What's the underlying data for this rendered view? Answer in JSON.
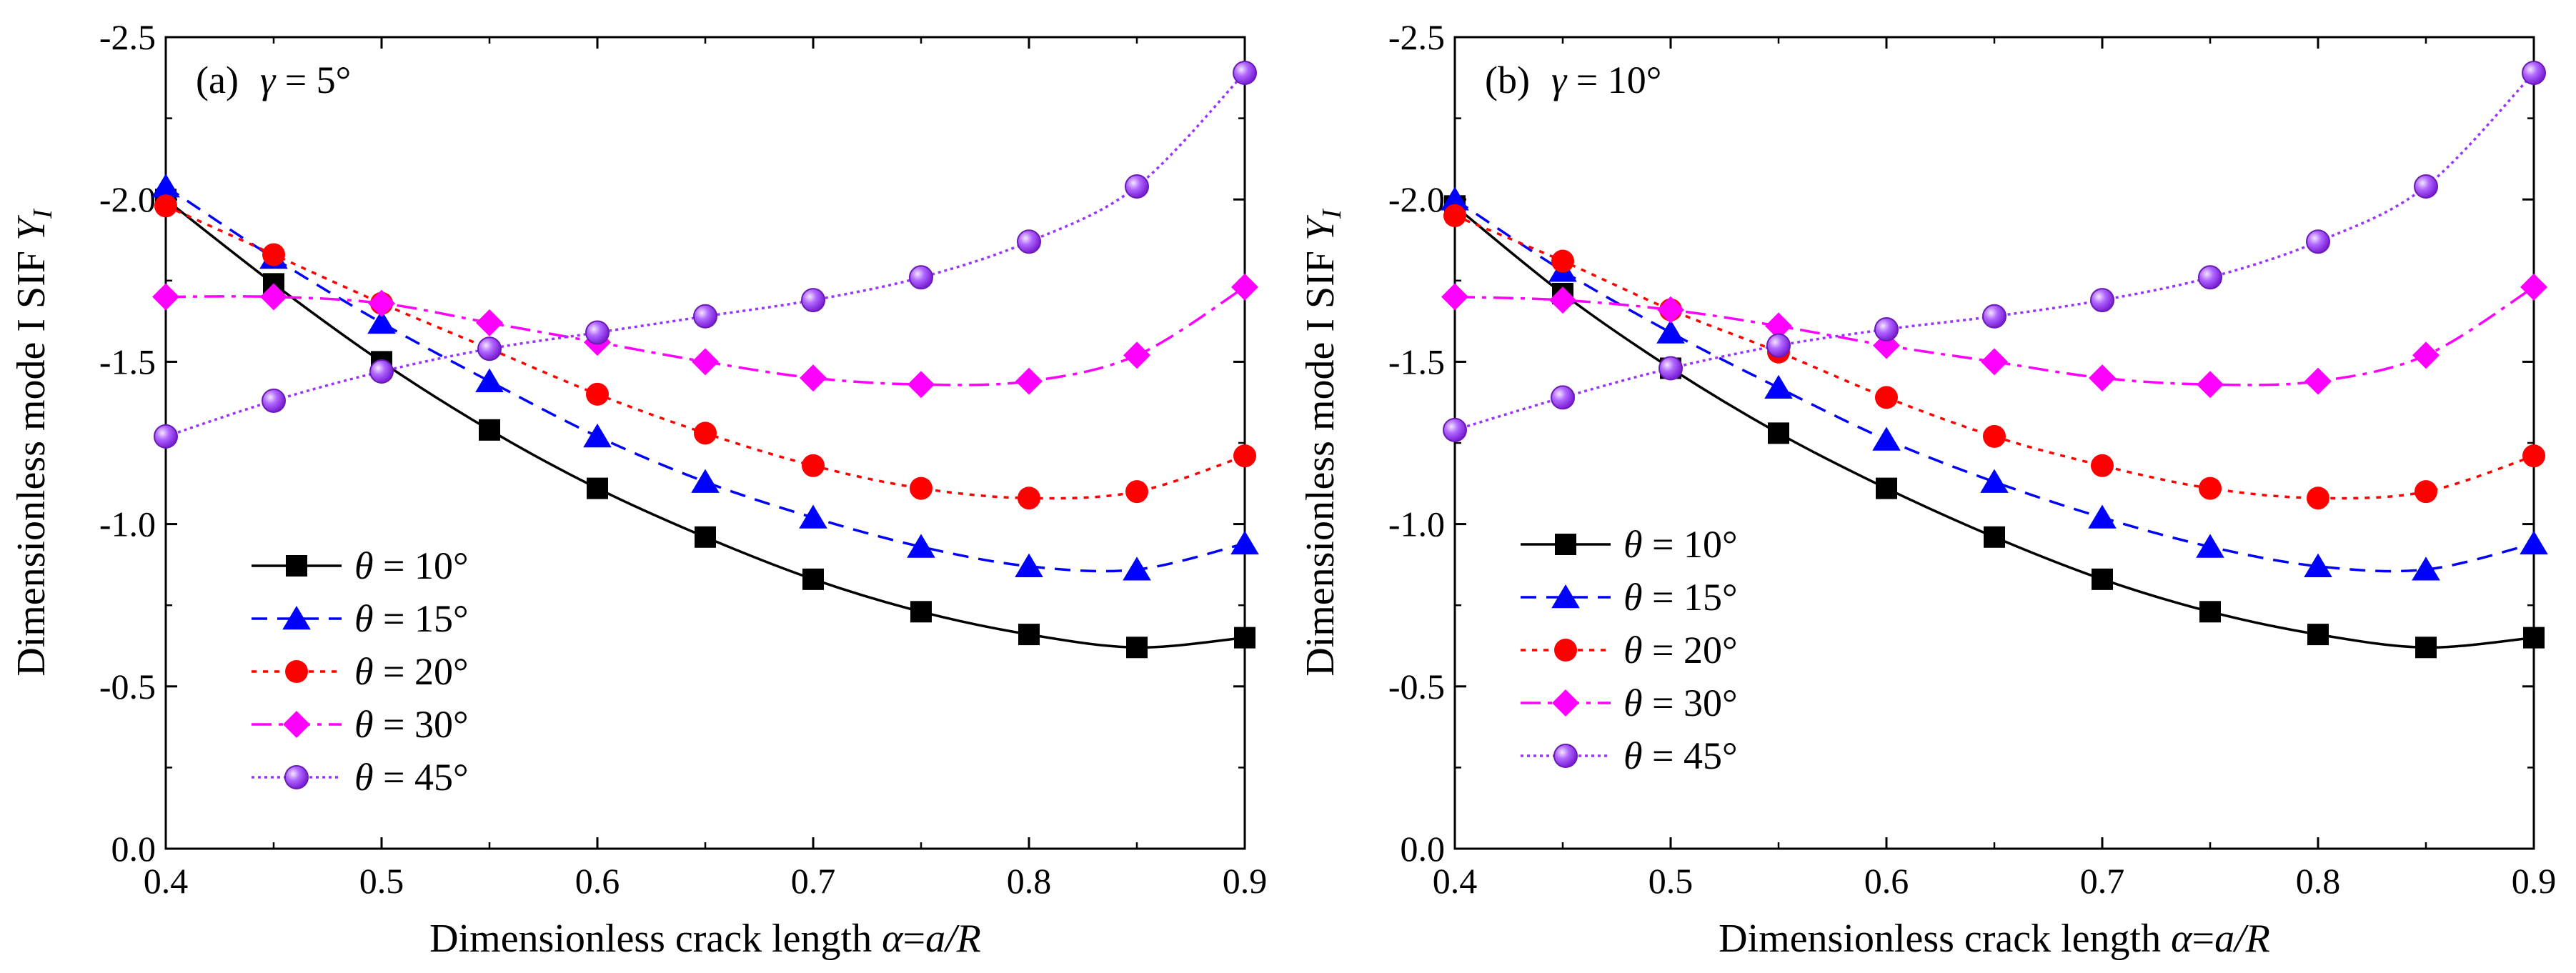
{
  "figure": {
    "styles": [
      {
        "key": "t10",
        "color": "#000000",
        "dash": "",
        "marker": "square"
      },
      {
        "key": "t15",
        "color": "#0000ff",
        "dash": "22,14",
        "marker": "triangle"
      },
      {
        "key": "t20",
        "color": "#ff0000",
        "dash": "7,9",
        "marker": "circle"
      },
      {
        "key": "t30",
        "color": "#ff00ff",
        "dash": "28,10,6,10",
        "marker": "diamond"
      },
      {
        "key": "t45",
        "color": "#9933ff",
        "dash": "4,5",
        "marker": "sphere"
      }
    ]
  },
  "chart_data": [
    {
      "type": "line",
      "panel_label": "(a)",
      "panel_symbol": "γ",
      "panel_value": " = 5°",
      "xlabel_text": "Dimensionless crack length ",
      "xlabel_symbol": "α",
      "xlabel_eq": "=",
      "xlabel_ratio": "a/R",
      "ylabel_text": "Dimensionless mode I SIF ",
      "ylabel_symbol": "Y",
      "ylabel_sub": "I",
      "xlim": [
        0.4,
        0.9
      ],
      "ylim": [
        0,
        -2.5
      ],
      "y_inverted": true,
      "xticks": [
        "0.4",
        "0.5",
        "0.6",
        "0.7",
        "0.8",
        "0.9"
      ],
      "yticks": [
        "0.0",
        "-0.5",
        "-1.0",
        "-1.5",
        "-2.0",
        "-2.5"
      ],
      "legend_position": "lower-left",
      "x": [
        0.4,
        0.45,
        0.5,
        0.55,
        0.6,
        0.65,
        0.7,
        0.75,
        0.8,
        0.85,
        0.9
      ],
      "series": [
        {
          "name": "θ = 10°",
          "symbol": "θ",
          "rest": " = 10°",
          "values": [
            -2.0,
            -1.74,
            -1.5,
            -1.29,
            -1.11,
            -0.96,
            -0.83,
            -0.73,
            -0.66,
            -0.62,
            -0.65
          ]
        },
        {
          "name": "θ = 15°",
          "symbol": "θ",
          "rest": " = 15°",
          "values": [
            -2.04,
            -1.82,
            -1.62,
            -1.44,
            -1.27,
            -1.13,
            -1.02,
            -0.93,
            -0.87,
            -0.86,
            -0.94
          ]
        },
        {
          "name": "θ = 20°",
          "symbol": "θ",
          "rest": " = 20°",
          "values": [
            -1.98,
            -1.83,
            -1.68,
            -1.54,
            -1.4,
            -1.28,
            -1.18,
            -1.11,
            -1.08,
            -1.1,
            -1.21
          ]
        },
        {
          "name": "θ = 30°",
          "symbol": "θ",
          "rest": " = 30°",
          "values": [
            -1.7,
            -1.7,
            -1.68,
            -1.62,
            -1.56,
            -1.5,
            -1.45,
            -1.43,
            -1.44,
            -1.52,
            -1.73
          ]
        },
        {
          "name": "θ = 45°",
          "symbol": "θ",
          "rest": " = 45°",
          "values": [
            -1.27,
            -1.38,
            -1.47,
            -1.54,
            -1.59,
            -1.64,
            -1.69,
            -1.76,
            -1.87,
            -2.04,
            -2.39
          ]
        }
      ]
    },
    {
      "type": "line",
      "panel_label": "(b)",
      "panel_symbol": "γ",
      "panel_value": " = 10°",
      "xlabel_text": "Dimensionless crack length ",
      "xlabel_symbol": "α",
      "xlabel_eq": "=",
      "xlabel_ratio": "a/R",
      "ylabel_text": "Dimensionless mode I SIF ",
      "ylabel_symbol": "Y",
      "ylabel_sub": "I",
      "xlim": [
        0.4,
        0.9
      ],
      "ylim": [
        0,
        -2.5
      ],
      "y_inverted": true,
      "xticks": [
        "0.4",
        "0.5",
        "0.6",
        "0.7",
        "0.8",
        "0.9"
      ],
      "yticks": [
        "0.0",
        "-0.5",
        "-1.0",
        "-1.5",
        "-2.0",
        "-2.5"
      ],
      "legend_position": "lower-left",
      "x": [
        0.4,
        0.45,
        0.5,
        0.55,
        0.6,
        0.65,
        0.7,
        0.75,
        0.8,
        0.85,
        0.9
      ],
      "series": [
        {
          "name": "θ = 10°",
          "symbol": "θ",
          "rest": " = 10°",
          "values": [
            -1.98,
            -1.71,
            -1.48,
            -1.28,
            -1.11,
            -0.96,
            -0.83,
            -0.73,
            -0.66,
            -0.62,
            -0.65
          ]
        },
        {
          "name": "θ = 15°",
          "symbol": "θ",
          "rest": " = 15°",
          "values": [
            -2.0,
            -1.78,
            -1.59,
            -1.42,
            -1.26,
            -1.13,
            -1.02,
            -0.93,
            -0.87,
            -0.86,
            -0.94
          ]
        },
        {
          "name": "θ = 20°",
          "symbol": "θ",
          "rest": " = 20°",
          "values": [
            -1.95,
            -1.81,
            -1.66,
            -1.53,
            -1.39,
            -1.27,
            -1.18,
            -1.11,
            -1.08,
            -1.1,
            -1.21
          ]
        },
        {
          "name": "θ = 30°",
          "symbol": "θ",
          "rest": " = 30°",
          "values": [
            -1.7,
            -1.69,
            -1.66,
            -1.61,
            -1.55,
            -1.5,
            -1.45,
            -1.43,
            -1.44,
            -1.52,
            -1.73
          ]
        },
        {
          "name": "θ = 45°",
          "symbol": "θ",
          "rest": " = 45°",
          "values": [
            -1.29,
            -1.39,
            -1.48,
            -1.55,
            -1.6,
            -1.64,
            -1.69,
            -1.76,
            -1.87,
            -2.04,
            -2.39
          ]
        }
      ]
    }
  ]
}
